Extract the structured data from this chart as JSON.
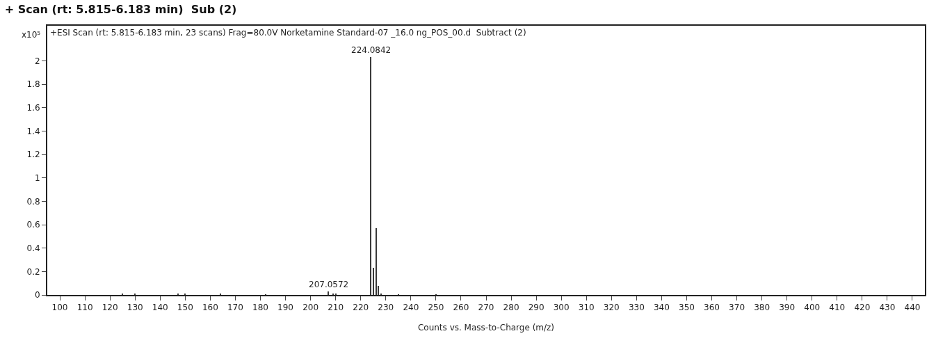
{
  "chart_data": {
    "type": "bar",
    "title": "+ Scan (rt: 5.815-6.183 min)  Sub (2)",
    "subtitle": "+ESI Scan (rt: 5.815-6.183 min, 23 scans) Frag=80.0V Norketamine Standard-07 _16.0 ng_POS_00.d  Subtract (2)",
    "xlabel": "Counts vs. Mass-to-Charge (m/z)",
    "ylabel": "x10⁵",
    "x": [
      125.0,
      130.1,
      147.1,
      150.0,
      164.1,
      182.1,
      207.0572,
      209.1,
      210.1,
      224.0842,
      225.09,
      226.08,
      227.08,
      228.08,
      235.1,
      250.1
    ],
    "values": [
      0.012,
      0.006,
      0.01,
      0.006,
      0.012,
      0.005,
      0.03,
      0.01,
      0.008,
      2.03,
      0.23,
      0.57,
      0.08,
      0.012,
      0.005,
      0.005
    ],
    "color": "#3a3a3a",
    "annotations": [
      {
        "text": "224.0842",
        "x": 224.0842,
        "y": 2.03
      },
      {
        "text": "207.0572",
        "x": 207.0572,
        "y": 0.03
      }
    ],
    "xlim": [
      95,
      445
    ],
    "xticks": [
      100,
      110,
      120,
      130,
      140,
      150,
      160,
      170,
      180,
      190,
      200,
      210,
      220,
      230,
      240,
      250,
      260,
      270,
      280,
      290,
      300,
      310,
      320,
      330,
      340,
      350,
      360,
      370,
      380,
      390,
      400,
      410,
      420,
      430,
      440
    ],
    "ylim": [
      0,
      2.3
    ],
    "yticks": [
      0,
      0.2,
      0.4,
      0.6,
      0.8,
      1,
      1.2,
      1.4,
      1.6,
      1.8,
      2
    ],
    "grid": false,
    "legend": false
  }
}
